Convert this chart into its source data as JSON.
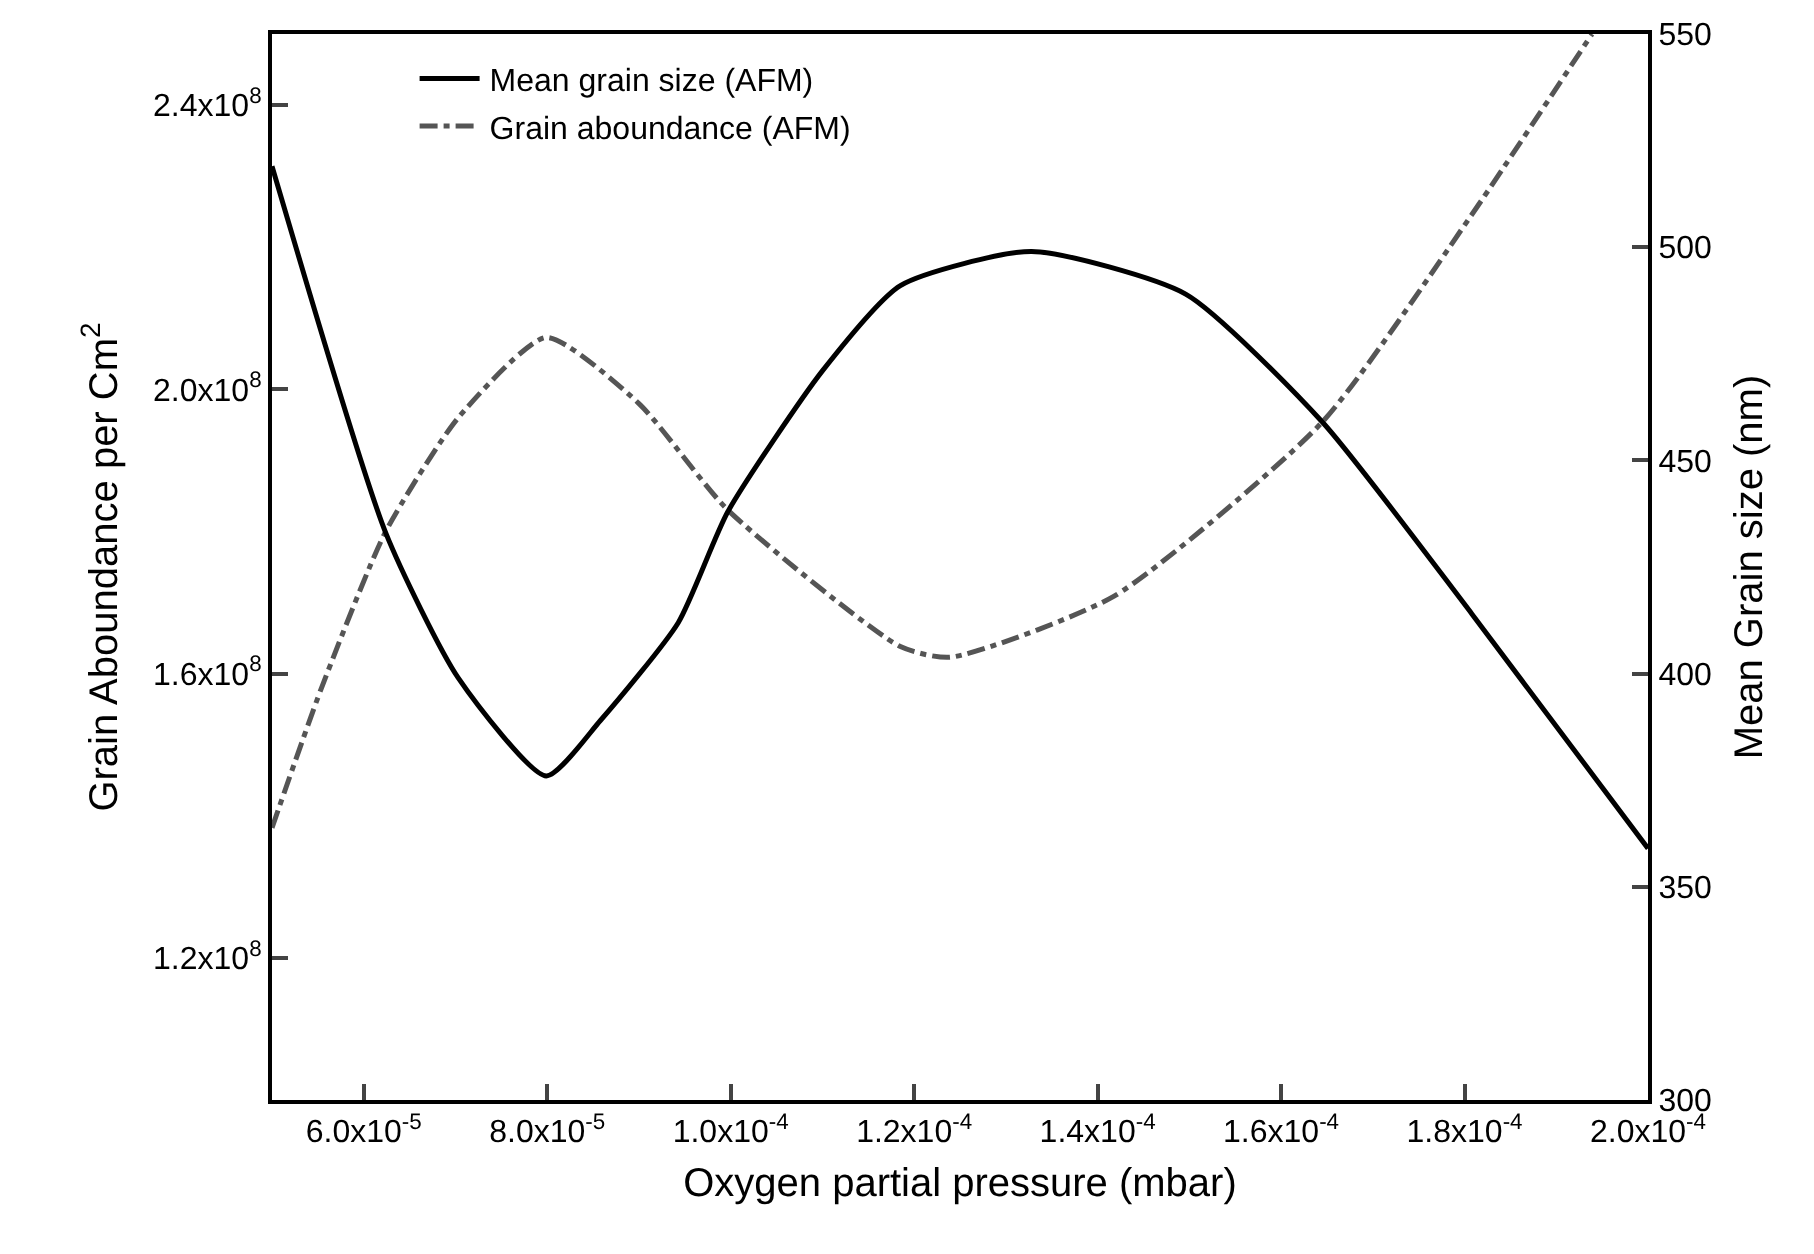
{
  "chart_data": {
    "type": "line",
    "xlabel": "Oxygen partial pressure (mbar)",
    "ylabel": "Grain Aboundance per Cm$^{2}$",
    "y2label": "Mean Grain size (nm)",
    "series": [
      {
        "name": "Mean grain size (AFM)",
        "color": "#000000",
        "axis": "y2",
        "line_style": "solid",
        "x": [
          5e-05,
          6.24e-05,
          7.03e-05,
          7.99e-05,
          8.58e-05,
          9.43e-05,
          9.97e-05,
          0.00011,
          0.0001185,
          0.0001328,
          0.0001496,
          0.0001645,
          0.0001808,
          0.0002
        ],
        "values": [
          519,
          433,
          399,
          376,
          389,
          412,
          438,
          471,
          491,
          499,
          489,
          459,
          414,
          359
        ]
      },
      {
        "name": "Grain aboundance (AFM)",
        "color": "#555555",
        "line_style": "dashdot",
        "x": [
          5e-05,
          5.54e-05,
          6.24e-05,
          7.03e-05,
          7.99e-05,
          9e-05,
          9.97e-05,
          0.0001185,
          0.0001239,
          0.0001418,
          0.0001645,
          0.0001808,
          0.0001939
        ],
        "values": [
          138300000.0,
          158000000.0,
          180000000.0,
          196000000.0,
          207300000.0,
          198000000.0,
          183000000.0,
          163800000.0,
          162300000.0,
          170900000.0,
          195400000.0,
          224600000.0,
          250000000.0
        ]
      }
    ],
    "xlim": [
      5e-05,
      0.0002
    ],
    "xticks": [
      {
        "value": 6e-05,
        "label": "6.0x10$^{-5}$"
      },
      {
        "value": 8e-05,
        "label": "8.0x10$^{-5}$"
      },
      {
        "value": 0.0001,
        "label": "1.0x10$^{-4}$"
      },
      {
        "value": 0.00012,
        "label": "1.2x10$^{-4}$"
      },
      {
        "value": 0.00014,
        "label": "1.4x10$^{-4}$"
      },
      {
        "value": 0.00016,
        "label": "1.6x10$^{-4}$"
      },
      {
        "value": 0.00018,
        "label": "1.8x10$^{-4}$"
      },
      {
        "value": 0.0002,
        "label": "2.0x10$^{-4}$"
      }
    ],
    "ylim": [
      100000000.0,
      250000000.0
    ],
    "yticks": [
      {
        "value": 120000000.0,
        "label": "1.2x10$^{8}$"
      },
      {
        "value": 160000000.0,
        "label": "1.6x10$^{8}$"
      },
      {
        "value": 200000000.0,
        "label": "2.0x10$^{8}$"
      },
      {
        "value": 240000000.0,
        "label": "2.4x10$^{8}$"
      }
    ],
    "y2lim": [
      300,
      550
    ],
    "y2ticks": [
      300,
      350,
      400,
      450,
      500,
      550
    ],
    "legend": "top left",
    "grid": false,
    "marker": "none"
  }
}
